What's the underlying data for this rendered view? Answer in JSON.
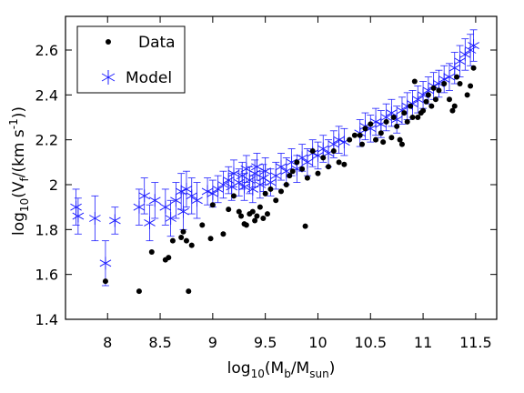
{
  "chart_data": {
    "type": "scatter",
    "title": "",
    "xlabel": {
      "base": "log",
      "sub": "10",
      "text": "(M",
      "sub2": "b",
      "text2": "/M",
      "sub3": "sun",
      "text3": ")"
    },
    "ylabel": {
      "base": "log",
      "sub": "10",
      "text": "(V",
      "sub2": "f",
      "text2": "/(km s",
      "sup": "-1",
      "text3": "))"
    },
    "xlim": [
      7.6,
      11.7
    ],
    "ylim": [
      1.4,
      2.75
    ],
    "xticks": [
      8,
      8.5,
      9,
      9.5,
      10,
      10.5,
      11,
      11.5
    ],
    "xtick_labels": [
      "8",
      "8.5",
      "9",
      "9.5",
      "10",
      "10.5",
      "11",
      "11.5"
    ],
    "yticks": [
      1.4,
      1.6,
      1.8,
      2.0,
      2.2,
      2.4,
      2.6
    ],
    "ytick_labels": [
      "1.4",
      "1.6",
      "1.8",
      "2",
      "2.2",
      "2.4",
      "2.6"
    ],
    "grid": false,
    "legend": {
      "position": "top-left",
      "entries": [
        "Data",
        "Model"
      ]
    },
    "colors": {
      "data": "#000000",
      "model": "#1f1fff"
    },
    "series": [
      {
        "name": "Data",
        "marker": "filled-circle",
        "points": [
          [
            7.98,
            1.57
          ],
          [
            8.3,
            1.525
          ],
          [
            8.77,
            1.525
          ],
          [
            8.42,
            1.7
          ],
          [
            8.55,
            1.665
          ],
          [
            8.58,
            1.675
          ],
          [
            8.62,
            1.75
          ],
          [
            8.7,
            1.765
          ],
          [
            8.72,
            1.79
          ],
          [
            8.75,
            1.75
          ],
          [
            8.8,
            1.73
          ],
          [
            8.9,
            1.82
          ],
          [
            8.98,
            1.76
          ],
          [
            9.1,
            1.78
          ],
          [
            9.0,
            1.91
          ],
          [
            9.15,
            1.89
          ],
          [
            9.2,
            1.95
          ],
          [
            9.25,
            1.88
          ],
          [
            9.27,
            1.86
          ],
          [
            9.3,
            1.825
          ],
          [
            9.32,
            1.82
          ],
          [
            9.35,
            1.87
          ],
          [
            9.38,
            1.88
          ],
          [
            9.4,
            1.84
          ],
          [
            9.42,
            1.86
          ],
          [
            9.45,
            1.9
          ],
          [
            9.48,
            1.85
          ],
          [
            9.5,
            1.96
          ],
          [
            9.52,
            1.87
          ],
          [
            9.55,
            1.98
          ],
          [
            9.6,
            1.93
          ],
          [
            9.65,
            1.97
          ],
          [
            9.7,
            2.0
          ],
          [
            9.73,
            2.04
          ],
          [
            9.76,
            2.06
          ],
          [
            9.8,
            2.1
          ],
          [
            9.85,
            2.07
          ],
          [
            9.88,
            1.815
          ],
          [
            9.9,
            2.03
          ],
          [
            9.95,
            2.15
          ],
          [
            10.0,
            2.05
          ],
          [
            10.05,
            2.12
          ],
          [
            10.1,
            2.08
          ],
          [
            10.15,
            2.15
          ],
          [
            10.2,
            2.1
          ],
          [
            10.25,
            2.09
          ],
          [
            10.3,
            2.2
          ],
          [
            10.4,
            2.22
          ],
          [
            10.42,
            2.18
          ],
          [
            10.45,
            2.25
          ],
          [
            10.5,
            2.27
          ],
          [
            10.55,
            2.2
          ],
          [
            10.6,
            2.23
          ],
          [
            10.62,
            2.19
          ],
          [
            10.65,
            2.28
          ],
          [
            10.7,
            2.21
          ],
          [
            10.72,
            2.3
          ],
          [
            10.75,
            2.26
          ],
          [
            10.78,
            2.2
          ],
          [
            10.8,
            2.18
          ],
          [
            10.82,
            2.32
          ],
          [
            10.85,
            2.28
          ],
          [
            10.88,
            2.35
          ],
          [
            10.9,
            2.3
          ],
          [
            10.92,
            2.46
          ],
          [
            10.95,
            2.3
          ],
          [
            10.98,
            2.32
          ],
          [
            11.0,
            2.33
          ],
          [
            11.03,
            2.37
          ],
          [
            11.05,
            2.4
          ],
          [
            11.08,
            2.35
          ],
          [
            11.1,
            2.43
          ],
          [
            11.12,
            2.38
          ],
          [
            11.15,
            2.42
          ],
          [
            11.2,
            2.45
          ],
          [
            11.25,
            2.38
          ],
          [
            11.28,
            2.33
          ],
          [
            11.3,
            2.35
          ],
          [
            11.32,
            2.48
          ],
          [
            11.35,
            2.45
          ],
          [
            11.42,
            2.4
          ],
          [
            11.45,
            2.44
          ],
          [
            11.48,
            2.52
          ],
          [
            10.35,
            2.22
          ]
        ]
      },
      {
        "name": "Model",
        "marker": "asterisk",
        "error_bars": true,
        "points": [
          [
            7.7,
            1.9,
            0.08
          ],
          [
            7.72,
            1.86,
            0.08
          ],
          [
            7.88,
            1.85,
            0.1
          ],
          [
            7.98,
            1.65,
            0.1
          ],
          [
            8.07,
            1.84,
            0.06
          ],
          [
            8.3,
            1.9,
            0.08
          ],
          [
            8.35,
            1.95,
            0.08
          ],
          [
            8.4,
            1.83,
            0.08
          ],
          [
            8.45,
            1.93,
            0.08
          ],
          [
            8.55,
            1.9,
            0.08
          ],
          [
            8.6,
            1.85,
            0.08
          ],
          [
            8.65,
            1.93,
            0.08
          ],
          [
            8.7,
            1.97,
            0.08
          ],
          [
            8.72,
            1.88,
            0.08
          ],
          [
            8.75,
            1.98,
            0.08
          ],
          [
            8.8,
            1.95,
            0.08
          ],
          [
            8.85,
            1.93,
            0.08
          ],
          [
            8.95,
            1.97,
            0.06
          ],
          [
            9.0,
            1.96,
            0.06
          ],
          [
            9.05,
            1.98,
            0.06
          ],
          [
            9.1,
            2.0,
            0.06
          ],
          [
            9.15,
            2.02,
            0.06
          ],
          [
            9.18,
            1.99,
            0.06
          ],
          [
            9.2,
            2.05,
            0.06
          ],
          [
            9.25,
            2.01,
            0.06
          ],
          [
            9.28,
            2.04,
            0.06
          ],
          [
            9.3,
            1.99,
            0.06
          ],
          [
            9.32,
            2.07,
            0.06
          ],
          [
            9.35,
            2.02,
            0.06
          ],
          [
            9.38,
            1.98,
            0.06
          ],
          [
            9.4,
            2.05,
            0.06
          ],
          [
            9.42,
            2.08,
            0.06
          ],
          [
            9.45,
            2.0,
            0.06
          ],
          [
            9.48,
            2.03,
            0.06
          ],
          [
            9.5,
            2.06,
            0.06
          ],
          [
            9.55,
            2.01,
            0.06
          ],
          [
            9.6,
            2.04,
            0.06
          ],
          [
            9.65,
            2.08,
            0.06
          ],
          [
            9.7,
            2.06,
            0.06
          ],
          [
            9.75,
            2.1,
            0.06
          ],
          [
            9.8,
            2.07,
            0.06
          ],
          [
            9.85,
            2.12,
            0.06
          ],
          [
            9.9,
            2.1,
            0.06
          ],
          [
            9.95,
            2.14,
            0.06
          ],
          [
            10.0,
            2.13,
            0.06
          ],
          [
            10.05,
            2.16,
            0.06
          ],
          [
            10.1,
            2.14,
            0.06
          ],
          [
            10.15,
            2.18,
            0.06
          ],
          [
            10.2,
            2.2,
            0.06
          ],
          [
            10.25,
            2.19,
            0.06
          ],
          [
            10.4,
            2.23,
            0.06
          ],
          [
            10.45,
            2.26,
            0.06
          ],
          [
            10.5,
            2.25,
            0.06
          ],
          [
            10.55,
            2.28,
            0.06
          ],
          [
            10.6,
            2.27,
            0.06
          ],
          [
            10.65,
            2.3,
            0.06
          ],
          [
            10.7,
            2.32,
            0.06
          ],
          [
            10.75,
            2.29,
            0.06
          ],
          [
            10.8,
            2.33,
            0.06
          ],
          [
            10.85,
            2.35,
            0.06
          ],
          [
            10.9,
            2.36,
            0.06
          ],
          [
            10.95,
            2.38,
            0.06
          ],
          [
            11.0,
            2.4,
            0.06
          ],
          [
            11.05,
            2.42,
            0.06
          ],
          [
            11.1,
            2.44,
            0.06
          ],
          [
            11.15,
            2.45,
            0.06
          ],
          [
            11.2,
            2.47,
            0.06
          ],
          [
            11.25,
            2.48,
            0.06
          ],
          [
            11.3,
            2.52,
            0.07
          ],
          [
            11.35,
            2.55,
            0.07
          ],
          [
            11.4,
            2.58,
            0.07
          ],
          [
            11.45,
            2.6,
            0.07
          ],
          [
            11.48,
            2.62,
            0.07
          ]
        ]
      }
    ]
  }
}
